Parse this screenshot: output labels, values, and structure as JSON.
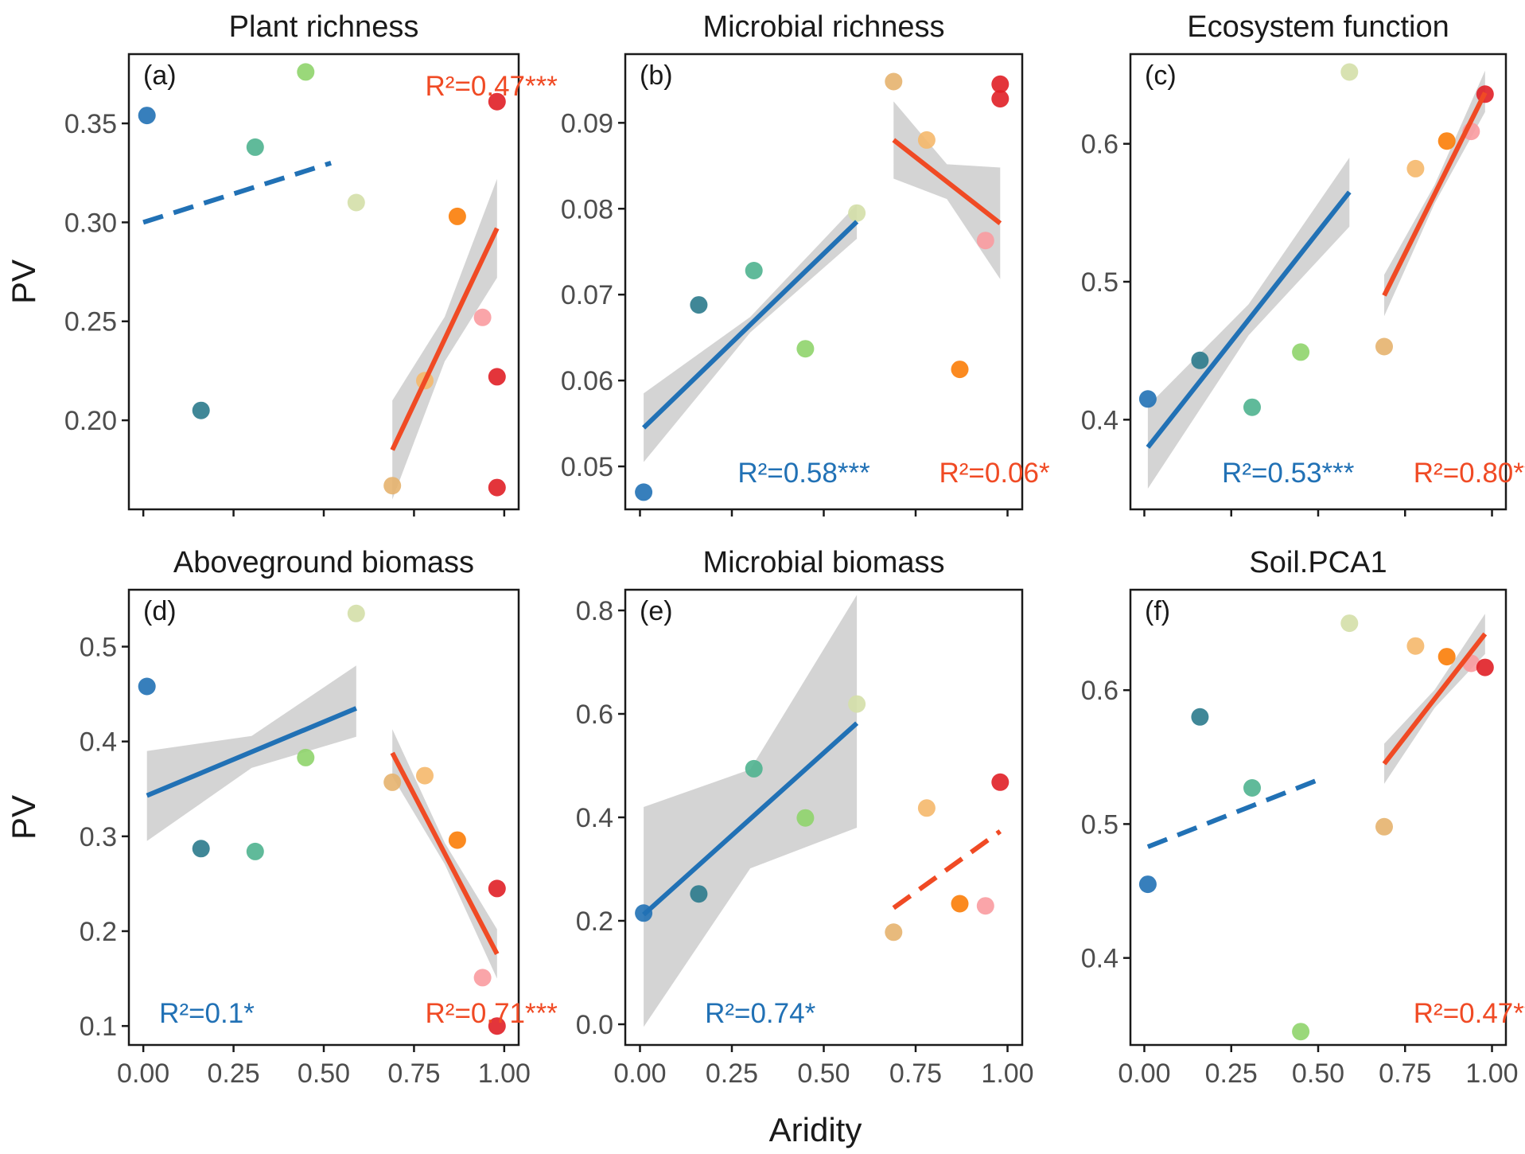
{
  "figure": {
    "x_axis_title": "Aridity",
    "y_axis_title": "PV"
  },
  "colors": {
    "low_aridity_line": "#2171b5",
    "high_aridity_line": "#f04a24",
    "ribbon": "#bdbdbd",
    "points": {
      "0.01": "#2171b5",
      "0.16": "#2b7a8c",
      "0.31": "#4fb38f",
      "0.45": "#8fd46b",
      "0.59": "#d4dfa8",
      "0.69": "#e6b26e",
      "0.78": "#f5b86b",
      "0.87": "#fb7d08",
      "0.94": "#f99ba0",
      "0.98": "#e01f26"
    }
  },
  "chart_data": [
    {
      "id": "a",
      "tag": "(a)",
      "type": "scatter",
      "title": "Plant richness",
      "ylabel": "PV",
      "xlabel": "",
      "xlim": [
        -0.04,
        1.04
      ],
      "ylim": [
        0.155,
        0.385
      ],
      "xticks": [
        "0.00",
        "0.25",
        "0.50",
        "0.75",
        "1.00"
      ],
      "show_xticks": false,
      "yticks": [
        "0.20",
        "0.25",
        "0.30",
        "0.35"
      ],
      "points": [
        [
          0.01,
          0.354
        ],
        [
          0.16,
          0.205
        ],
        [
          0.31,
          0.338
        ],
        [
          0.45,
          0.376
        ],
        [
          0.59,
          0.31
        ],
        [
          0.69,
          0.167
        ],
        [
          0.78,
          0.22
        ],
        [
          0.87,
          0.303
        ],
        [
          0.94,
          0.252
        ],
        [
          0.98,
          0.361
        ],
        [
          0.98,
          0.222
        ],
        [
          0.98,
          0.166
        ]
      ],
      "fits": [
        {
          "group": "low",
          "x": [
            0.0,
            0.52
          ],
          "y": [
            0.3,
            0.33
          ],
          "dashed": true,
          "band": null
        },
        {
          "group": "high",
          "x": [
            0.69,
            0.98
          ],
          "y": [
            0.185,
            0.297
          ],
          "dashed": false,
          "band": {
            "lower": [
              0.16,
              0.272
            ],
            "upper": [
              0.21,
              0.322
            ]
          }
        }
      ],
      "labels": [
        {
          "text": "R²=0.47***",
          "color": "#f04a24",
          "xf": 0.93,
          "yf": 0.07
        }
      ]
    },
    {
      "id": "b",
      "tag": "(b)",
      "type": "scatter",
      "title": "Microbial richness",
      "ylabel": "",
      "xlabel": "",
      "xlim": [
        -0.04,
        1.04
      ],
      "ylim": [
        0.045,
        0.098
      ],
      "xticks": [
        "0.00",
        "0.25",
        "0.50",
        "0.75",
        "1.00"
      ],
      "show_xticks": false,
      "yticks": [
        "0.05",
        "0.06",
        "0.07",
        "0.08",
        "0.09"
      ],
      "points": [
        [
          0.01,
          0.047
        ],
        [
          0.16,
          0.0688
        ],
        [
          0.31,
          0.0728
        ],
        [
          0.45,
          0.0637
        ],
        [
          0.59,
          0.0795
        ],
        [
          0.69,
          0.0948
        ],
        [
          0.78,
          0.088
        ],
        [
          0.87,
          0.0613
        ],
        [
          0.94,
          0.0763
        ],
        [
          0.98,
          0.0945
        ],
        [
          0.98,
          0.0928
        ]
      ],
      "fits": [
        {
          "group": "low",
          "x": [
            0.01,
            0.59
          ],
          "y": [
            0.0545,
            0.0785
          ],
          "dashed": false,
          "band": {
            "lower": [
              0.0505,
              0.0765
            ],
            "upper": [
              0.0585,
              0.0805
            ]
          }
        },
        {
          "group": "high",
          "x": [
            0.69,
            0.98
          ],
          "y": [
            0.088,
            0.0783
          ],
          "dashed": false,
          "band": {
            "lower": [
              0.0835,
              0.0718
            ],
            "upper": [
              0.0925,
              0.0848
            ]
          }
        }
      ],
      "labels": [
        {
          "text": "R²=0.58***",
          "color": "#2171b5",
          "xf": 0.45,
          "yf": 0.92
        },
        {
          "text": "R²=0.06*",
          "color": "#f04a24",
          "xf": 0.93,
          "yf": 0.92
        }
      ]
    },
    {
      "id": "c",
      "tag": "(c)",
      "type": "scatter",
      "title": "Ecosystem function",
      "ylabel": "",
      "xlabel": "",
      "xlim": [
        -0.04,
        1.04
      ],
      "ylim": [
        0.335,
        0.665
      ],
      "xticks": [
        "0.00",
        "0.25",
        "0.50",
        "0.75",
        "1.00"
      ],
      "show_xticks": false,
      "yticks": [
        "0.4",
        "0.5",
        "0.6"
      ],
      "points": [
        [
          0.01,
          0.415
        ],
        [
          0.16,
          0.443
        ],
        [
          0.31,
          0.409
        ],
        [
          0.45,
          0.449
        ],
        [
          0.59,
          0.652
        ],
        [
          0.69,
          0.453
        ],
        [
          0.78,
          0.582
        ],
        [
          0.87,
          0.602
        ],
        [
          0.94,
          0.609
        ],
        [
          0.98,
          0.636
        ]
      ],
      "fits": [
        {
          "group": "low",
          "x": [
            0.01,
            0.59
          ],
          "y": [
            0.38,
            0.565
          ],
          "dashed": false,
          "band": {
            "lower": [
              0.35,
              0.54
            ],
            "upper": [
              0.41,
              0.59
            ]
          }
        },
        {
          "group": "high",
          "x": [
            0.69,
            0.98
          ],
          "y": [
            0.49,
            0.637
          ],
          "dashed": false,
          "band": {
            "lower": [
              0.475,
              0.623
            ],
            "upper": [
              0.505,
              0.653
            ]
          }
        }
      ],
      "labels": [
        {
          "text": "R²=0.53***",
          "color": "#2171b5",
          "xf": 0.42,
          "yf": 0.92
        },
        {
          "text": "R²=0.80***",
          "color": "#f04a24",
          "xf": 0.93,
          "yf": 0.92
        }
      ]
    },
    {
      "id": "d",
      "tag": "(d)",
      "type": "scatter",
      "title": "Aboveground biomass",
      "ylabel": "PV",
      "xlabel": "",
      "xlim": [
        -0.04,
        1.04
      ],
      "ylim": [
        0.08,
        0.56
      ],
      "xticks": [
        "0.00",
        "0.25",
        "0.50",
        "0.75",
        "1.00"
      ],
      "show_xticks": true,
      "yticks": [
        "0.1",
        "0.2",
        "0.3",
        "0.4",
        "0.5"
      ],
      "points": [
        [
          0.01,
          0.458
        ],
        [
          0.16,
          0.287
        ],
        [
          0.31,
          0.284
        ],
        [
          0.45,
          0.383
        ],
        [
          0.59,
          0.535
        ],
        [
          0.69,
          0.357
        ],
        [
          0.78,
          0.364
        ],
        [
          0.87,
          0.296
        ],
        [
          0.94,
          0.151
        ],
        [
          0.98,
          0.245
        ],
        [
          0.98,
          0.1
        ]
      ],
      "fits": [
        {
          "group": "low",
          "x": [
            0.01,
            0.59
          ],
          "y": [
            0.343,
            0.435
          ],
          "dashed": false,
          "band": {
            "lower": [
              0.295,
              0.405
            ],
            "upper": [
              0.39,
              0.48
            ]
          }
        },
        {
          "group": "high",
          "x": [
            0.69,
            0.98
          ],
          "y": [
            0.388,
            0.176
          ],
          "dashed": false,
          "band": {
            "lower": [
              0.363,
              0.15
            ],
            "upper": [
              0.413,
              0.202
            ]
          }
        }
      ],
      "labels": [
        {
          "text": "R²=0.1*",
          "color": "#2171b5",
          "xf": 0.2,
          "yf": 0.93
        },
        {
          "text": "R²=0.71***",
          "color": "#f04a24",
          "xf": 0.93,
          "yf": 0.93
        }
      ]
    },
    {
      "id": "e",
      "tag": "(e)",
      "type": "scatter",
      "title": "Microbial biomass",
      "ylabel": "",
      "xlabel": "Aridity",
      "xlim": [
        -0.04,
        1.04
      ],
      "ylim": [
        -0.04,
        0.84
      ],
      "xticks": [
        "0.00",
        "0.25",
        "0.50",
        "0.75",
        "1.00"
      ],
      "show_xticks": true,
      "yticks": [
        "0.0",
        "0.2",
        "0.4",
        "0.6",
        "0.8"
      ],
      "points": [
        [
          0.01,
          0.215
        ],
        [
          0.16,
          0.252
        ],
        [
          0.31,
          0.494
        ],
        [
          0.45,
          0.399
        ],
        [
          0.59,
          0.619
        ],
        [
          0.69,
          0.178
        ],
        [
          0.78,
          0.418
        ],
        [
          0.87,
          0.233
        ],
        [
          0.94,
          0.229
        ],
        [
          0.98,
          0.468
        ]
      ],
      "fits": [
        {
          "group": "low",
          "x": [
            0.01,
            0.59
          ],
          "y": [
            0.212,
            0.582
          ],
          "dashed": false,
          "band": {
            "lower": [
              -0.005,
              0.38
            ],
            "upper": [
              0.42,
              0.83
            ]
          }
        },
        {
          "group": "high",
          "x": [
            0.69,
            0.98
          ],
          "y": [
            0.225,
            0.373
          ],
          "dashed": true,
          "band": null
        }
      ],
      "labels": [
        {
          "text": "R²=0.74*",
          "color": "#2171b5",
          "xf": 0.34,
          "yf": 0.93
        }
      ]
    },
    {
      "id": "f",
      "tag": "(f)",
      "type": "scatter",
      "title": "Soil.PCA1",
      "ylabel": "",
      "xlabel": "",
      "xlim": [
        -0.04,
        1.04
      ],
      "ylim": [
        0.335,
        0.675
      ],
      "xticks": [
        "0.00",
        "0.25",
        "0.50",
        "0.75",
        "1.00"
      ],
      "show_xticks": true,
      "yticks": [
        "0.4",
        "0.5",
        "0.6"
      ],
      "points": [
        [
          0.01,
          0.455
        ],
        [
          0.16,
          0.58
        ],
        [
          0.31,
          0.527
        ],
        [
          0.45,
          0.345
        ],
        [
          0.59,
          0.65
        ],
        [
          0.69,
          0.498
        ],
        [
          0.78,
          0.633
        ],
        [
          0.87,
          0.625
        ],
        [
          0.94,
          0.62
        ],
        [
          0.98,
          0.617
        ]
      ],
      "fits": [
        {
          "group": "low",
          "x": [
            0.01,
            0.52
          ],
          "y": [
            0.483,
            0.535
          ],
          "dashed": true,
          "band": null
        },
        {
          "group": "high",
          "x": [
            0.69,
            0.98
          ],
          "y": [
            0.545,
            0.642
          ],
          "dashed": false,
          "band": {
            "lower": [
              0.53,
              0.627
            ],
            "upper": [
              0.56,
              0.657
            ]
          }
        }
      ],
      "labels": [
        {
          "text": "R²=0.47***",
          "color": "#f04a24",
          "xf": 0.93,
          "yf": 0.93
        }
      ]
    }
  ]
}
